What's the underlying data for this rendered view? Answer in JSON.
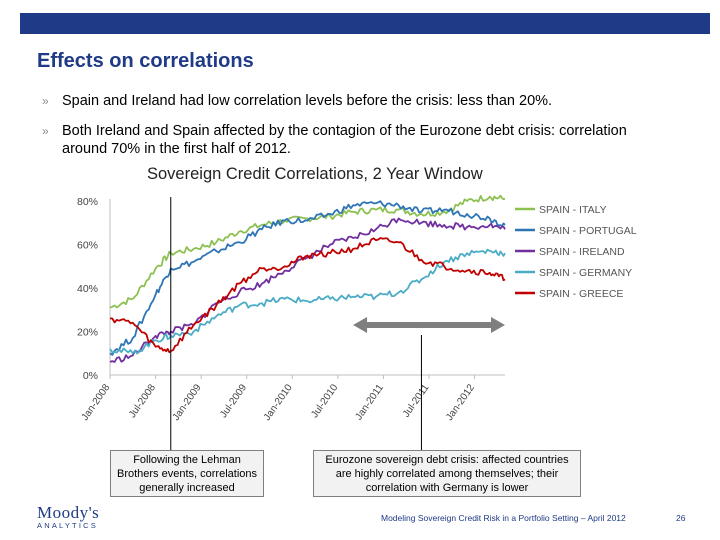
{
  "slide": {
    "title": "Effects on correlations",
    "bullets": [
      {
        "marker": "»",
        "text": "Spain and Ireland had low correlation levels before the crisis: less than 20%."
      },
      {
        "marker": "»",
        "text": "Both Ireland and Spain affected by the contagion of the Eurozone debt crisis: correlation around 70% in the first half of 2012."
      }
    ],
    "callouts": [
      "Following the Lehman Brothers events, correlations generally increased",
      "Eurozone sovereign debt crisis: affected countries are highly correlated among themselves; their correlation with Germany is lower"
    ],
    "logo": {
      "main": "Moody's",
      "sub": "ANALYTICS"
    },
    "footer": "Modeling Sovereign Credit Risk in a Portfolio Setting – April 2012",
    "page_number": "26",
    "colors": {
      "brand": "#1f3a86"
    }
  },
  "chart_data": {
    "type": "line",
    "title": "Sovereign Credit Correlations, 2 Year Window",
    "xlabel": "",
    "ylabel": "",
    "ylim": [
      0,
      80
    ],
    "y_ticks": [
      "0%",
      "20%",
      "40%",
      "60%",
      "80%"
    ],
    "x_ticks": [
      "Jan-2008",
      "Jul-2008",
      "Jan-2009",
      "Jul-2009",
      "Jan-2010",
      "Jul-2010",
      "Jan-2011",
      "Jul-2011",
      "Jan-2012"
    ],
    "grid": false,
    "legend": "right",
    "x": [
      "2008-01",
      "2008-04",
      "2008-07",
      "2008-09",
      "2008-12",
      "2009-03",
      "2009-06",
      "2009-09",
      "2009-12",
      "2010-03",
      "2010-06",
      "2010-09",
      "2010-12",
      "2011-03",
      "2011-06",
      "2011-09",
      "2011-12",
      "2012-03",
      "2012-05"
    ],
    "series": [
      {
        "name": "SPAIN - ITALY",
        "color": "#8cc152",
        "values": [
          31,
          35,
          49,
          56,
          58,
          61,
          66,
          69,
          71,
          72,
          73,
          75,
          76,
          76,
          74,
          75,
          80,
          82,
          81
        ]
      },
      {
        "name": "SPAIN - PORTUGAL",
        "color": "#2e75b6",
        "values": [
          10,
          17,
          37,
          49,
          52,
          57,
          61,
          67,
          71,
          71,
          74,
          78,
          79,
          78,
          75,
          76,
          74,
          72,
          69
        ]
      },
      {
        "name": "SPAIN - IRELAND",
        "color": "#7030a0",
        "values": [
          6,
          9,
          18,
          20,
          23,
          33,
          38,
          42,
          48,
          54,
          60,
          63,
          67,
          72,
          70,
          69,
          68,
          69,
          67
        ]
      },
      {
        "name": "SPAIN - GERMANY",
        "color": "#4bacc6",
        "values": [
          12,
          10,
          16,
          18,
          20,
          27,
          32,
          33,
          35,
          34,
          35,
          36,
          36,
          38,
          44,
          52,
          56,
          57,
          56
        ]
      },
      {
        "name": "SPAIN - GREECE",
        "color": "#c00000",
        "values": [
          26,
          24,
          13,
          11,
          23,
          32,
          42,
          49,
          50,
          55,
          56,
          58,
          62,
          61,
          53,
          50,
          48,
          47,
          44
        ]
      }
    ],
    "annotations": [
      {
        "type": "vertical-line",
        "at": "2008-09",
        "label": "Following the Lehman Brothers events, correlations generally increased"
      },
      {
        "type": "double-arrow",
        "from": "2010-09",
        "to": "2012-05",
        "level": 23
      },
      {
        "type": "vertical-line",
        "at": "2011-06",
        "label": "Eurozone sovereign debt crisis: affected countries are highly correlated among themselves; their correlation with Germany is lower"
      }
    ]
  }
}
